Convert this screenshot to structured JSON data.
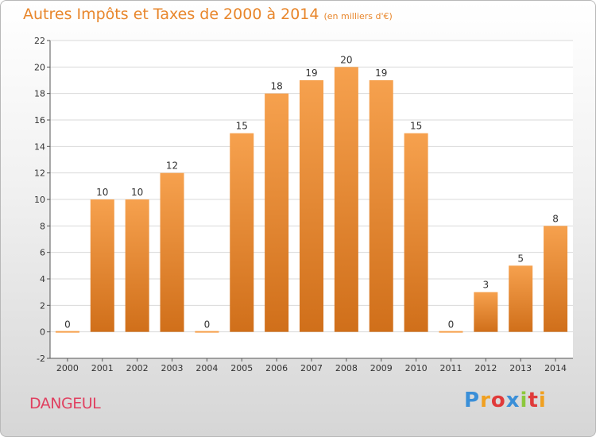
{
  "header": {
    "title": "Autres Impôts et Taxes de 2000 à 2014",
    "unit": "(en milliers d'€)"
  },
  "footer": {
    "place": "DANGEUL",
    "brand": [
      "P",
      "r",
      "o",
      "x",
      "i",
      "t",
      "i"
    ],
    "brand_colors": [
      "#3a8fd8",
      "#f0a020",
      "#e03a3a",
      "#3a8fd8",
      "#8cc83c",
      "#e03a3a",
      "#f0a020"
    ]
  },
  "colors": {
    "bar_top": "#f6a14e",
    "bar_bottom": "#d06f1a",
    "grid": "#d9d9d9"
  },
  "chart_data": {
    "type": "bar",
    "title": "Autres Impôts et Taxes de 2000 à 2014",
    "categories": [
      "2000",
      "2001",
      "2002",
      "2003",
      "2004",
      "2005",
      "2006",
      "2007",
      "2008",
      "2009",
      "2010",
      "2011",
      "2012",
      "2013",
      "2014"
    ],
    "values": [
      0,
      10,
      10,
      12,
      0,
      15,
      18,
      19,
      20,
      19,
      15,
      0,
      3,
      5,
      8
    ],
    "ylim": [
      -2,
      22
    ],
    "yticks": [
      -2,
      0,
      2,
      4,
      6,
      8,
      10,
      12,
      14,
      16,
      18,
      20,
      22
    ],
    "grid": true
  }
}
